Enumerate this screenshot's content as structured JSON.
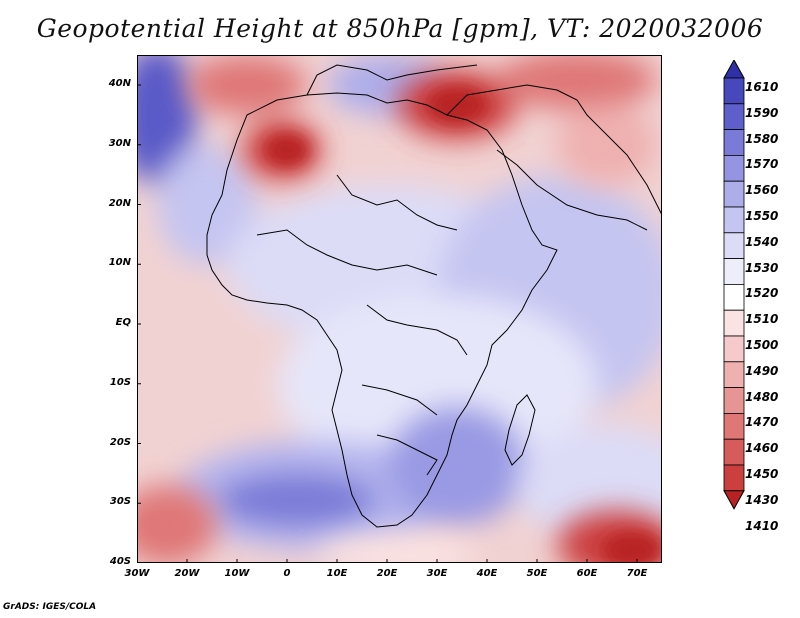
{
  "title": "Geopotential Height at 850hPa [gpm], VT: 2020032006",
  "credit": "GrADS: IGES/COLA",
  "map": {
    "lon_range": [
      -30,
      75
    ],
    "lat_range": [
      -40,
      45
    ],
    "y_labels": [
      "40N",
      "30N",
      "20N",
      "10N",
      "EQ",
      "10S",
      "20S",
      "30S",
      "40S"
    ],
    "x_labels": [
      "30W",
      "20W",
      "10W",
      "0",
      "10E",
      "20E",
      "30E",
      "40E",
      "50E",
      "60E",
      "70E"
    ],
    "colors": {
      "ocean_base": "#f1d2d2",
      "land_base": "#e6e6fa"
    }
  },
  "colorbar": {
    "labels": [
      "1610",
      "1590",
      "1580",
      "1570",
      "1560",
      "1550",
      "1540",
      "1530",
      "1520",
      "1510",
      "1500",
      "1490",
      "1480",
      "1470",
      "1460",
      "1450",
      "1430",
      "1410"
    ],
    "colors": [
      "#2f2fa6",
      "#4848bd",
      "#5f5fcc",
      "#7a7ad8",
      "#9494e2",
      "#adadea",
      "#c5c5f1",
      "#dcdcf7",
      "#eeeefb",
      "#ffffff",
      "#fbe3e3",
      "#f6caca",
      "#efb0b0",
      "#e79494",
      "#df7777",
      "#d65b5b",
      "#cc3f3f",
      "#b82222"
    ]
  }
}
